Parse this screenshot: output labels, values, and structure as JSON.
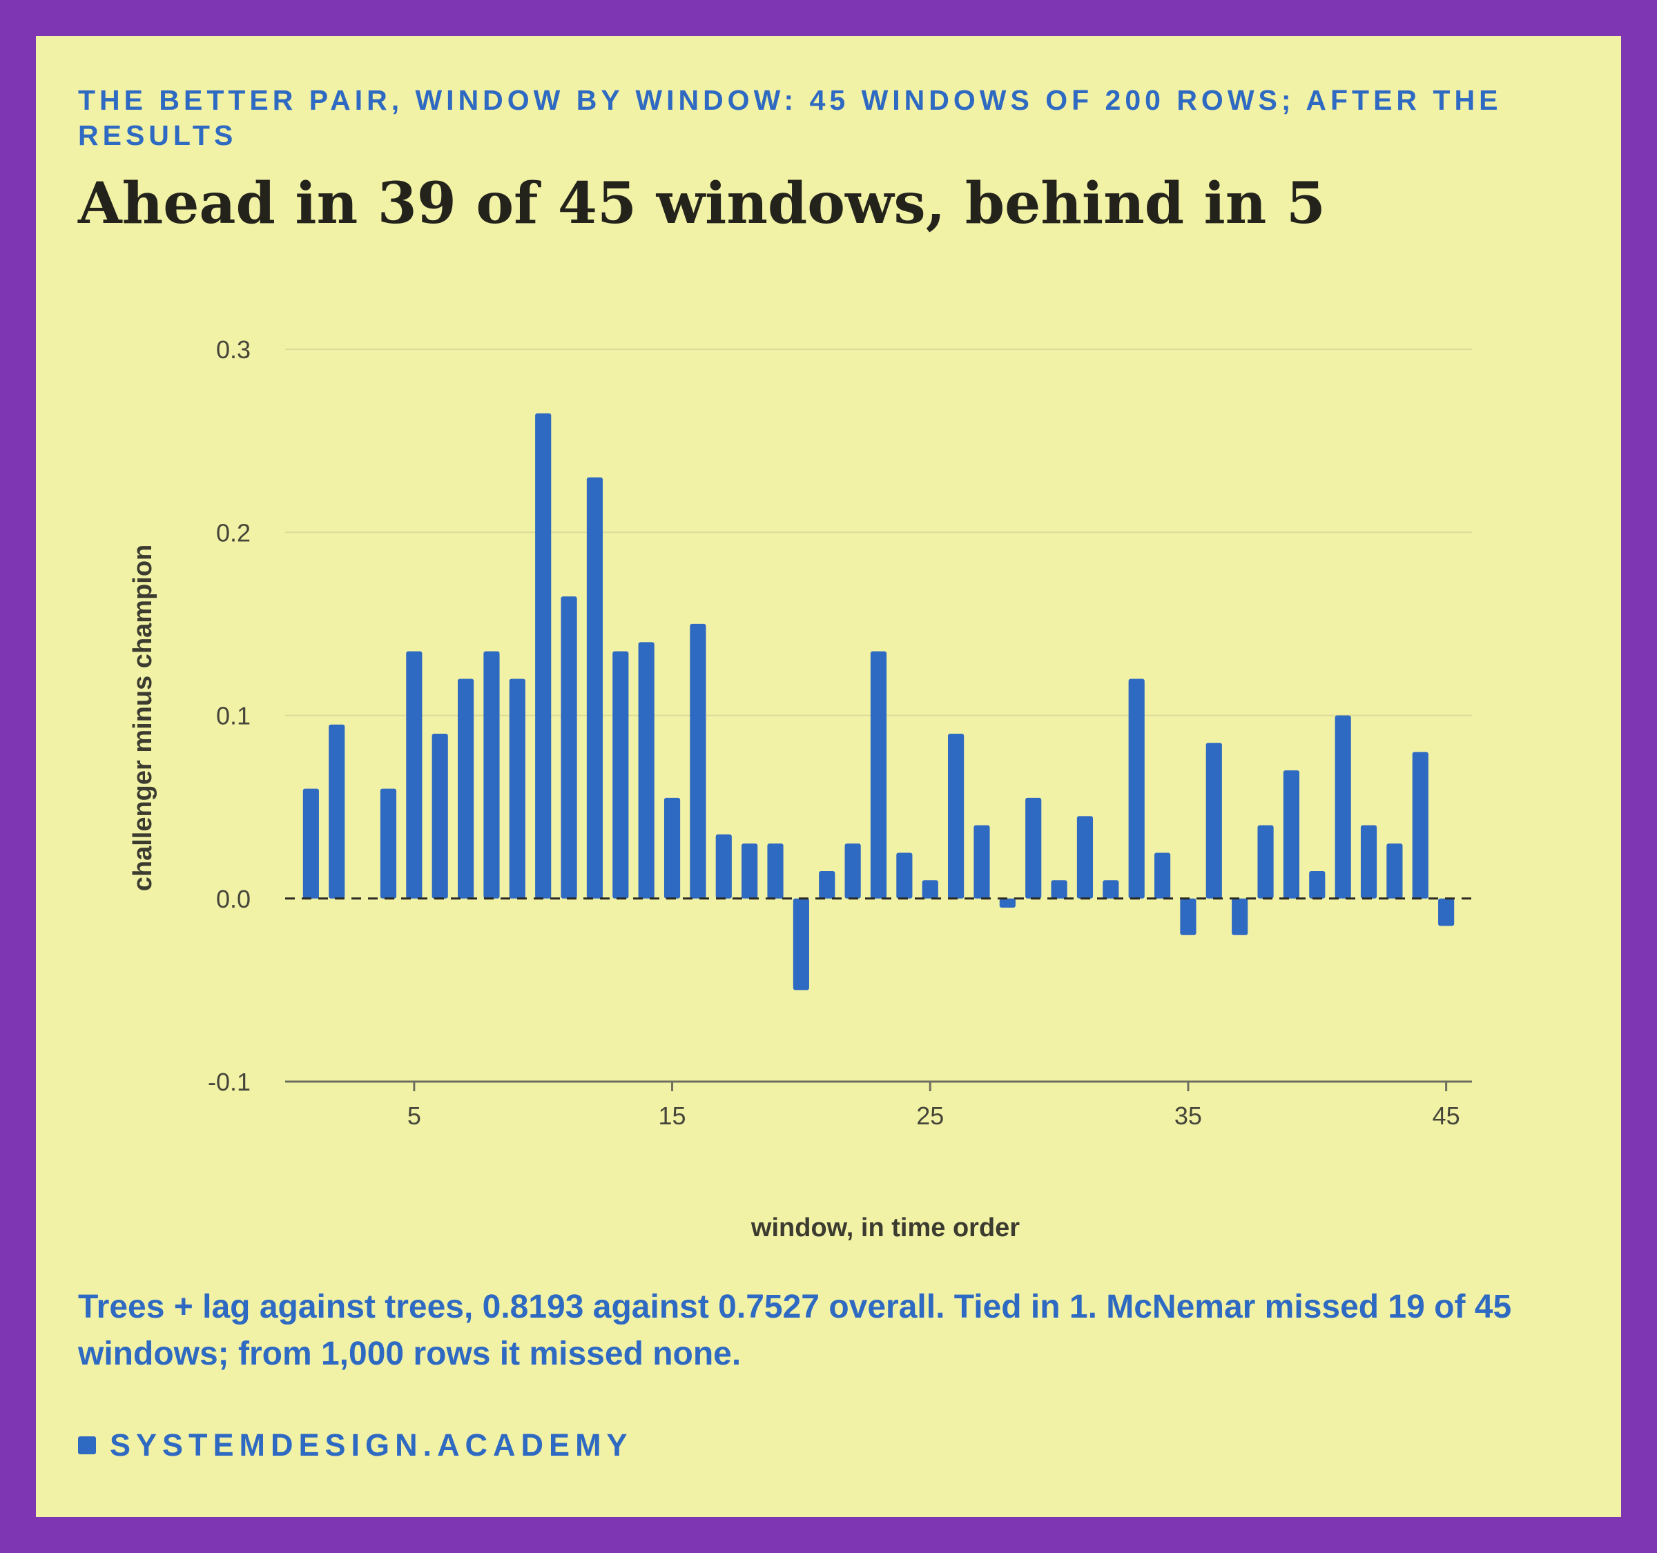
{
  "kicker": "THE BETTER PAIR, WINDOW BY WINDOW: 45 WINDOWS OF 200 ROWS; AFTER THE RESULTS",
  "headline": "Ahead in 39 of 45 windows, behind in 5",
  "caption": "Trees + lag against trees, 0.8193 against 0.7527 overall. Tied in 1. McNemar missed 19 of 45 windows; from 1,000 rows it missed none.",
  "footer": {
    "brand": "SYSTEMDESIGN.ACADEMY"
  },
  "colors": {
    "background": "#f2f2a7",
    "frame": "#7f36b3",
    "bar": "#2e69c2",
    "headline": "#23231c",
    "accent": "#2e69c2"
  },
  "chart_data": {
    "type": "bar",
    "title": "Ahead in 39 of 45 windows, behind in 5",
    "xlabel": "window, in time order",
    "ylabel": "challenger minus champion",
    "x": [
      1,
      2,
      3,
      4,
      5,
      6,
      7,
      8,
      9,
      10,
      11,
      12,
      13,
      14,
      15,
      16,
      17,
      18,
      19,
      20,
      21,
      22,
      23,
      24,
      25,
      26,
      27,
      28,
      29,
      30,
      31,
      32,
      33,
      34,
      35,
      36,
      37,
      38,
      39,
      40,
      41,
      42,
      43,
      44,
      45
    ],
    "values": [
      0.06,
      0.095,
      0.0,
      0.06,
      0.135,
      0.09,
      0.12,
      0.135,
      0.12,
      0.265,
      0.165,
      0.23,
      0.135,
      0.14,
      0.055,
      0.15,
      0.035,
      0.03,
      0.03,
      -0.05,
      0.015,
      0.03,
      0.135,
      0.025,
      0.01,
      0.09,
      0.04,
      -0.005,
      0.055,
      0.01,
      0.045,
      0.01,
      0.12,
      0.025,
      -0.02,
      0.085,
      -0.02,
      0.04,
      0.07,
      0.015,
      0.1,
      0.04,
      0.03,
      0.08,
      -0.015
    ],
    "xticks": [
      5,
      15,
      25,
      35,
      45
    ],
    "yticks": [
      -0.1,
      0.0,
      0.1,
      0.2,
      0.3
    ],
    "ytick_labels": [
      "-0.1",
      "0.0",
      "0.1",
      "0.2",
      "0.3"
    ],
    "ylim": [
      -0.1,
      0.3
    ],
    "xlim": [
      0,
      46
    ],
    "reference_line": {
      "y": 0.0,
      "style": "dashed"
    },
    "grid": true
  }
}
